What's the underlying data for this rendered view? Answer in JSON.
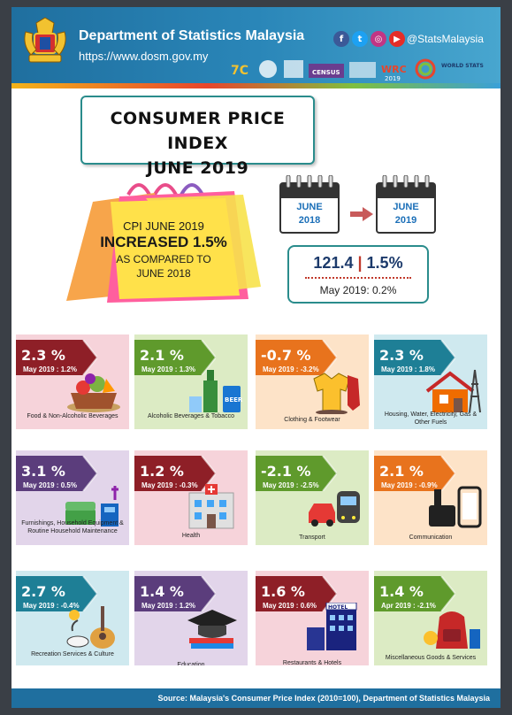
{
  "header": {
    "org_name": "Department of Statistics Malaysia",
    "url": "https://www.dosm.gov.my",
    "social_handle": "@StatsMalaysia",
    "social_icons": [
      "facebook-icon",
      "twitter-icon",
      "instagram-icon",
      "youtube-icon"
    ],
    "logo_texts": [
      "7C",
      "CENSUS",
      "WRC",
      "2019",
      "WORLD STATS"
    ]
  },
  "title": {
    "line1": "CONSUMER PRICE INDEX",
    "line2": "JUNE 2019"
  },
  "bag": {
    "line1": "CPI JUNE 2019",
    "line2": "INCREASED 1.5%",
    "line3": "AS COMPARED TO",
    "line4": "JUNE 2018"
  },
  "calendars": [
    {
      "month": "JUNE",
      "year": "2018"
    },
    {
      "month": "JUNE",
      "year": "2019"
    }
  ],
  "cpi": {
    "index": "121.4",
    "divider": "|",
    "change": "1.5%",
    "prev": "May 2019: 0.2%"
  },
  "cards": [
    {
      "pct": "2.3 %",
      "prev": "May 2019 : 1.2%",
      "label": "Food & Non-Alcoholic Beverages",
      "bg": "#f6d3da",
      "badge": "#8e1f27",
      "icon": "food-basket-icon"
    },
    {
      "pct": "2.1 %",
      "prev": "May 2019 : 1.3%",
      "label": "Alcoholic Beverages & Tobacco",
      "bg": "#dcebc4",
      "badge": "#5f9a2c",
      "icon": "beer-bottle-icon"
    },
    {
      "pct": "-0.7 %",
      "prev": "May 2019 : -3.2%",
      "label": "Clothing & Footwear",
      "bg": "#fde3c8",
      "badge": "#e8731d",
      "icon": "clothing-icon"
    },
    {
      "pct": "2.3 %",
      "prev": "May 2019 : 1.8%",
      "label": "Housing, Water, Electricity, Gas & Other Fuels",
      "bg": "#cfe9ef",
      "badge": "#1e7f96",
      "icon": "house-icon"
    },
    {
      "pct": "3.1 %",
      "prev": "May 2019 : 0.5%",
      "label": "Furnishings, Household Equipment & Routine Household Maintenance",
      "bg": "#e2d5ea",
      "badge": "#5b3d7c",
      "icon": "furniture-icon"
    },
    {
      "pct": "1.2 %",
      "prev": "May 2019 : -0.3%",
      "label": "Health",
      "bg": "#f6d3da",
      "badge": "#8e1f27",
      "icon": "hospital-icon"
    },
    {
      "pct": "-2.1 %",
      "prev": "May 2019 : -2.5%",
      "label": "Transport",
      "bg": "#dcebc4",
      "badge": "#5f9a2c",
      "icon": "transport-icon"
    },
    {
      "pct": "2.1 %",
      "prev": "May 2019 : -0.9%",
      "label": "Communication",
      "bg": "#fde3c8",
      "badge": "#e8731d",
      "icon": "phone-icon"
    },
    {
      "pct": "2.7 %",
      "prev": "May 2019 : -0.4%",
      "label": "Recreation Services & Culture",
      "bg": "#cfe9ef",
      "badge": "#1e7f96",
      "icon": "guitar-icon"
    },
    {
      "pct": "1.4 %",
      "prev": "May 2019 : 1.2%",
      "label": "Education",
      "bg": "#e2d5ea",
      "badge": "#5b3d7c",
      "icon": "graduation-cap-icon"
    },
    {
      "pct": "1.6 %",
      "prev": "May 2019 : 0.6%",
      "label": "Restaurants & Hotels",
      "bg": "#f6d3da",
      "badge": "#8e1f27",
      "icon": "hotel-icon"
    },
    {
      "pct": "1.4 %",
      "prev": "Apr 2019 : -2.1%",
      "label": "Miscellaneous Goods & Services",
      "bg": "#dcebc4",
      "badge": "#5f9a2c",
      "icon": "backpack-icon"
    }
  ],
  "hotel_sign": "HOTEL",
  "beer_text": "BEER",
  "footer": "Source: Malaysia's Consumer Price Index (2010=100), Department of Statistics Malaysia"
}
